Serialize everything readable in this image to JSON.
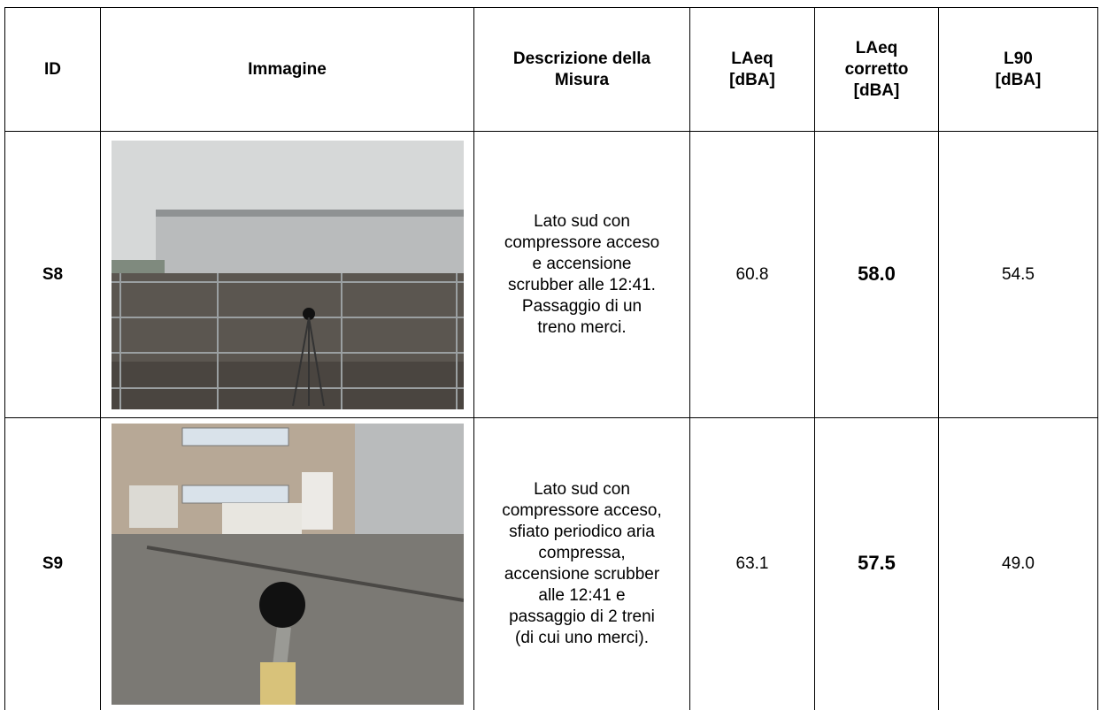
{
  "table": {
    "header": [
      [
        "ID"
      ],
      [
        "Immagine"
      ],
      [
        "Descrizione della",
        "Misura"
      ],
      [
        "LAeq",
        "[dBA]"
      ],
      [
        "LAeq",
        "corretto",
        "[dBA]"
      ],
      [
        "L90",
        "[dBA]"
      ]
    ],
    "rows": [
      {
        "id": "S8",
        "description": [
          "Lato sud con",
          "compressore acceso",
          "e accensione",
          "scrubber alle 12:41.",
          "Passaggio di un",
          "treno merci."
        ],
        "laeq": "60.8",
        "laeq_corretto": "58.0",
        "l90": "54.5"
      },
      {
        "id": "S9",
        "description": [
          "Lato sud con",
          "compressore acceso,",
          "sfiato periodico aria",
          "compressa,",
          "accensione scrubber",
          "alle 12:41 e",
          "passaggio di 2 treni",
          "(di cui uno merci)."
        ],
        "laeq": "63.1",
        "laeq_corretto": "57.5",
        "l90": "49.0"
      }
    ]
  }
}
